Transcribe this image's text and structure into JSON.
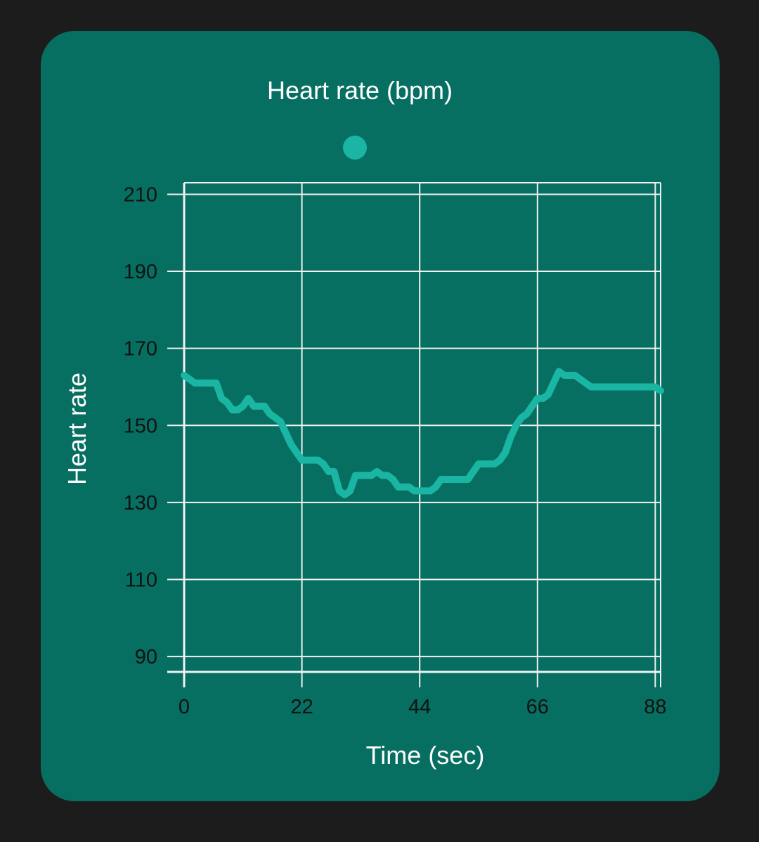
{
  "chart_data": {
    "type": "line",
    "title": "Heart rate (bpm)",
    "xlabel": "Time (sec)",
    "ylabel": "Heart rate",
    "xlim": [
      0,
      89
    ],
    "ylim": [
      86,
      213
    ],
    "x_ticks": [
      0,
      22,
      44,
      66,
      88
    ],
    "y_ticks": [
      90,
      110,
      130,
      150,
      170,
      190,
      210
    ],
    "grid": true,
    "legend_position": "top",
    "series": [
      {
        "color": "#1ab5a3",
        "x": [
          0,
          1,
          2,
          3,
          4,
          5,
          6,
          7,
          8,
          9,
          10,
          11,
          12,
          13,
          14,
          15,
          16,
          17,
          18,
          19,
          20,
          21,
          22,
          23,
          24,
          25,
          26,
          27,
          28,
          29,
          30,
          31,
          32,
          33,
          34,
          35,
          36,
          37,
          38,
          39,
          40,
          41,
          42,
          43,
          44,
          45,
          46,
          47,
          48,
          49,
          50,
          51,
          52,
          53,
          54,
          55,
          56,
          57,
          58,
          59,
          60,
          61,
          62,
          63,
          64,
          65,
          66,
          67,
          68,
          69,
          70,
          71,
          72,
          73,
          74,
          75,
          76,
          77,
          78,
          79,
          80,
          81,
          82,
          83,
          84,
          85,
          86,
          87,
          88,
          89
        ],
        "y": [
          163,
          162,
          161,
          161,
          161,
          161,
          161,
          157,
          156,
          154,
          154,
          155,
          157,
          155,
          155,
          155,
          153,
          152,
          151,
          148,
          145,
          143,
          141,
          141,
          141,
          141,
          140,
          138,
          138,
          133,
          132,
          133,
          137,
          137,
          137,
          137,
          138,
          137,
          137,
          136,
          134,
          134,
          134,
          133,
          133,
          133,
          133,
          134,
          136,
          136,
          136,
          136,
          136,
          136,
          138,
          140,
          140,
          140,
          140,
          141,
          143,
          147,
          150,
          152,
          153,
          155,
          157,
          157,
          158,
          161,
          164,
          163,
          163,
          163,
          162,
          161,
          160,
          160,
          160,
          160,
          160,
          160,
          160,
          160,
          160,
          160,
          160,
          160,
          160,
          159
        ]
      }
    ]
  }
}
